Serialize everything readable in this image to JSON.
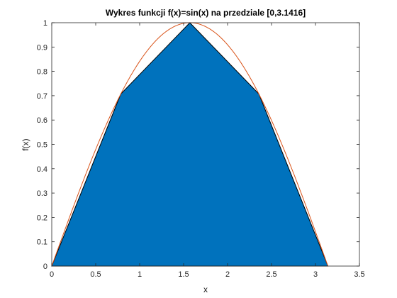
{
  "chart_data": {
    "type": "area",
    "title": "Wykres funkcji f(x)=sin(x) na przedziale [0,3.1416]",
    "xlabel": "x",
    "ylabel": "f(x)",
    "xlim": [
      0,
      3.5
    ],
    "ylim": [
      0,
      1
    ],
    "xticks": [
      0,
      0.5,
      1,
      1.5,
      2,
      2.5,
      3,
      3.5
    ],
    "xtick_labels": [
      "0",
      "0.5",
      "1",
      "1.5",
      "2",
      "2.5",
      "3",
      "3.5"
    ],
    "yticks": [
      0,
      0.1,
      0.2,
      0.3,
      0.4,
      0.5,
      0.6,
      0.7,
      0.8,
      0.9,
      1
    ],
    "ytick_labels": [
      "0",
      "0.1",
      "0.2",
      "0.3",
      "0.4",
      "0.5",
      "0.6",
      "0.7",
      "0.8",
      "0.9",
      "1"
    ],
    "grid": false,
    "series": [
      {
        "type": "area",
        "x": [
          0,
          0.7854,
          1.5708,
          2.3562,
          3.1416
        ],
        "y": [
          0,
          0.7071,
          1.0,
          0.7071,
          0
        ],
        "color": "#0072BD",
        "edge_color": "#000000"
      },
      {
        "type": "line",
        "function": "sin(x)",
        "domain": [
          0,
          3.1416
        ],
        "color": "#D95319"
      }
    ]
  }
}
